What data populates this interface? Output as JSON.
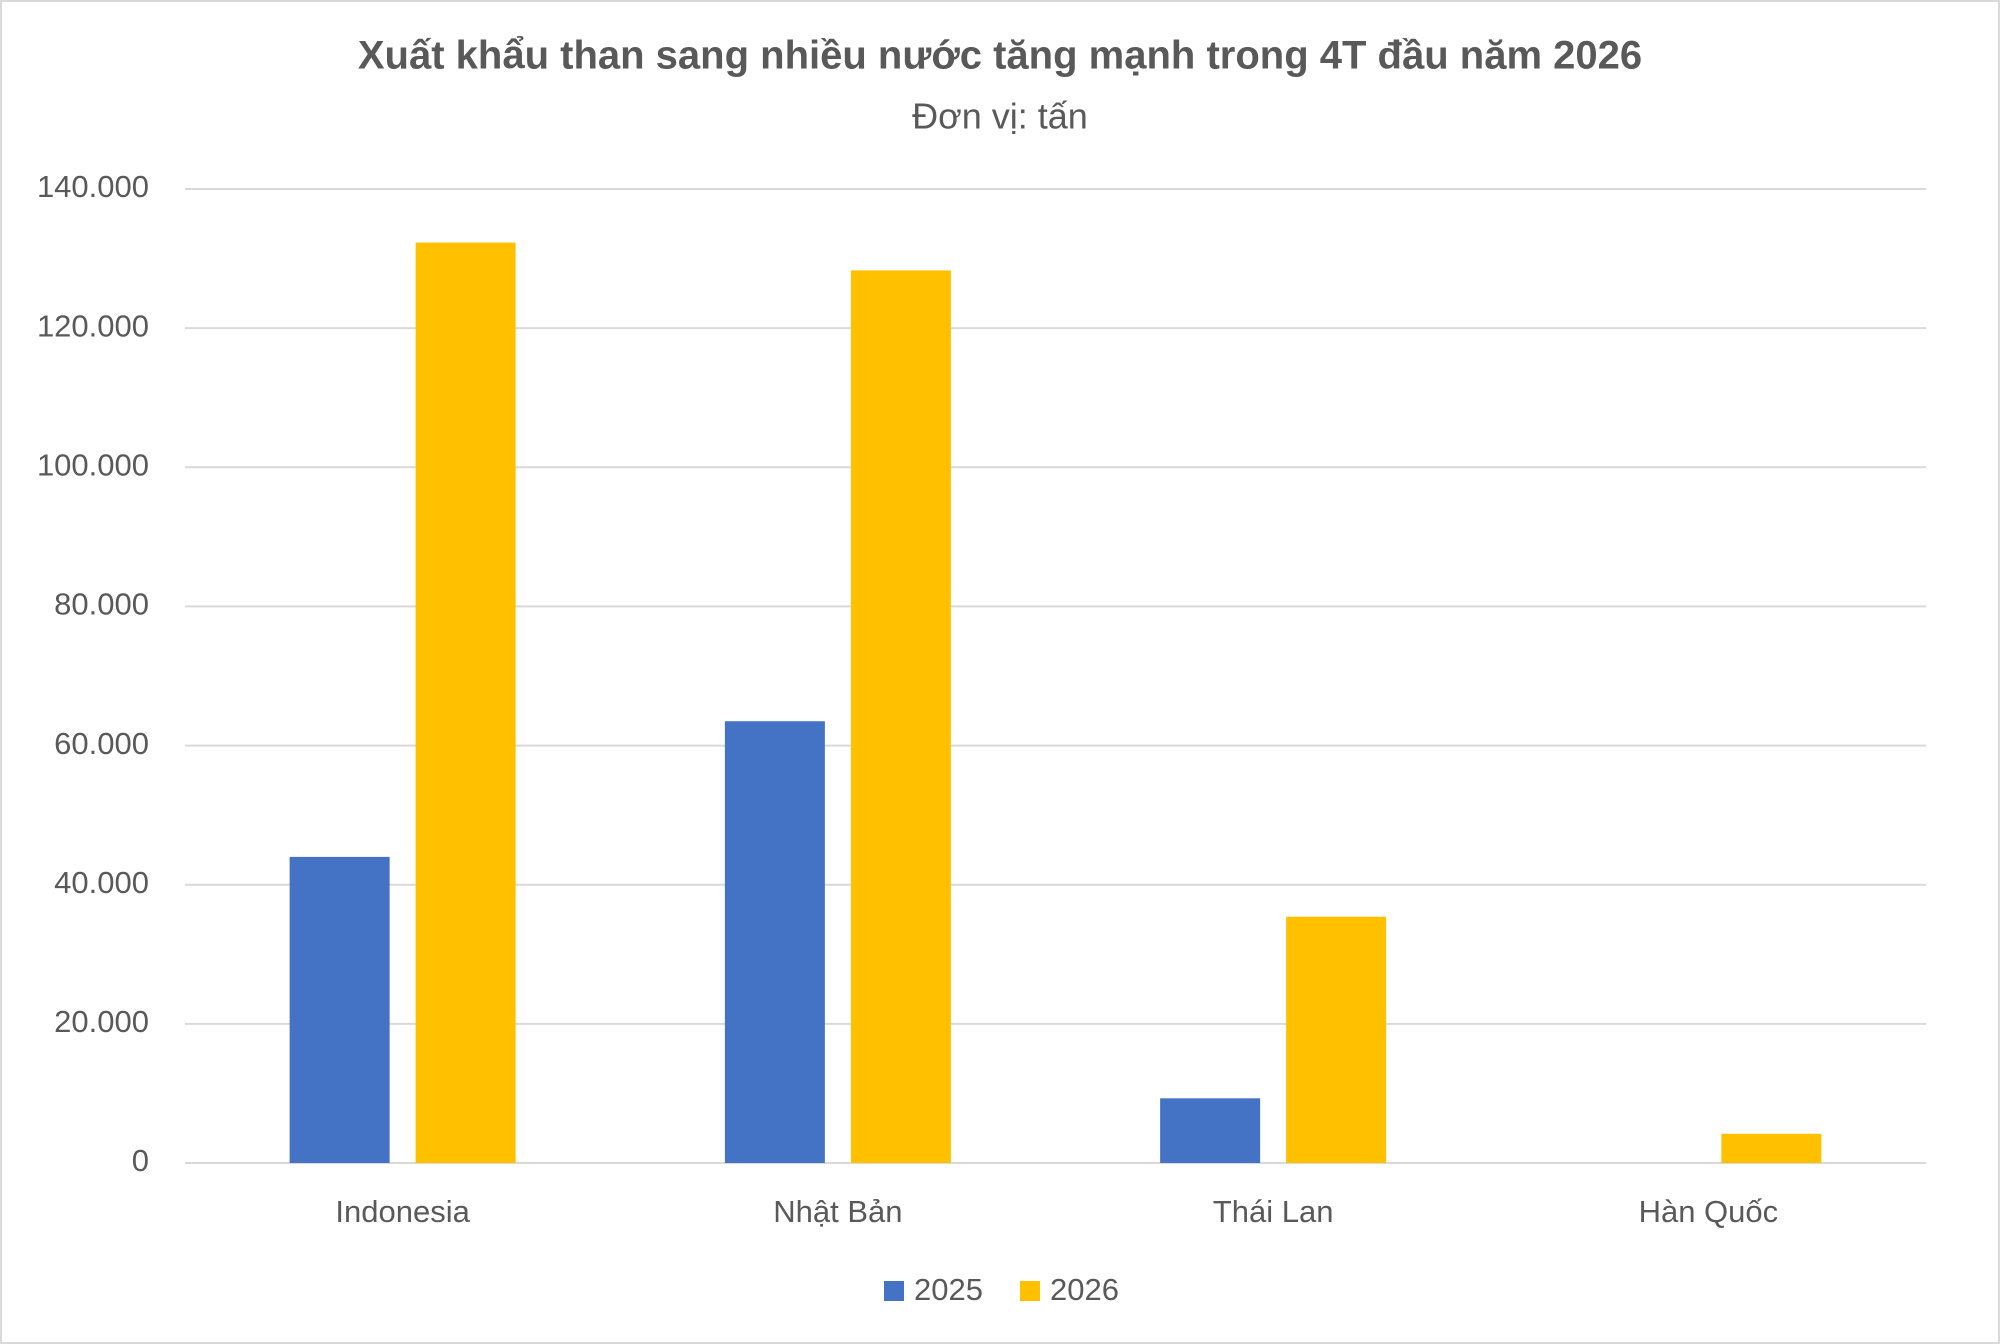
{
  "chart_data": {
    "type": "bar",
    "title": "Xuất khẩu than sang nhiều nước tăng mạnh trong 4T đầu năm 2026",
    "subtitle": "Đơn vị: tấn",
    "categories": [
      "Indonesia",
      "Nhật Bản",
      "Thái Lan",
      "Hàn Quốc"
    ],
    "series": [
      {
        "name": "2025",
        "color": "#4472c4",
        "values": [
          44000,
          63500,
          9300,
          0
        ]
      },
      {
        "name": "2026",
        "color": "#ffc000",
        "values": [
          132300,
          128300,
          35400,
          4200
        ]
      }
    ],
    "ylim": [
      0,
      140000
    ],
    "yticks": [
      0,
      {
        "value": 20000,
        "label": "20.000"
      },
      {
        "value": 40000,
        "label": "40.000"
      },
      {
        "value": 60000,
        "label": "60.000"
      },
      {
        "value": 80000,
        "label": "80.000"
      },
      {
        "value": 100000,
        "label": "100.000"
      },
      {
        "value": 120000,
        "label": "120.000"
      },
      {
        "value": 140000,
        "label": "140.000"
      }
    ],
    "grid": true,
    "legend": "bottom"
  }
}
